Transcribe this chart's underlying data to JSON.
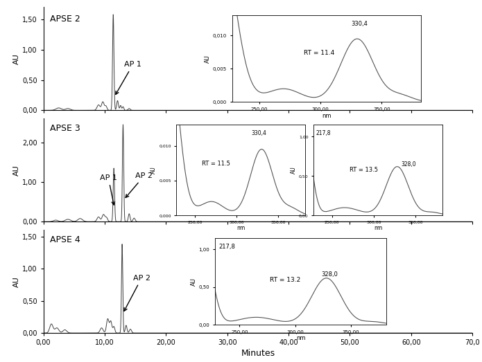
{
  "panel_labels": [
    "APSE 2",
    "APSE 3",
    "APSE 4"
  ],
  "main_xlim": [
    0,
    70
  ],
  "main_xticks": [
    0,
    10,
    20,
    30,
    40,
    50,
    60,
    70
  ],
  "main_xtick_labels": [
    "0,00",
    "10,00",
    "20,00",
    "30,00",
    "40,00",
    "50,00",
    "60,00",
    "70,0"
  ],
  "panel1_ylim": [
    0,
    1.7
  ],
  "panel1_yticks": [
    0.0,
    0.5,
    1.0,
    1.5
  ],
  "panel1_ytick_labels": [
    "0,00",
    "0,50",
    "1,00",
    "1,50"
  ],
  "panel2_ylim": [
    0,
    2.6
  ],
  "panel2_yticks": [
    0.0,
    1.0,
    2.0
  ],
  "panel2_ytick_labels": [
    "0,00",
    "1,00",
    "2,00"
  ],
  "panel3_ylim": [
    0,
    1.6
  ],
  "panel3_yticks": [
    0.0,
    0.5,
    1.0,
    1.5
  ],
  "panel3_ytick_labels": [
    "0,00",
    "0,50",
    "1,00",
    "1,50"
  ],
  "ylabel": "AU",
  "xlabel": "Minutes",
  "line_color": "#404040",
  "background_color": "#ffffff"
}
